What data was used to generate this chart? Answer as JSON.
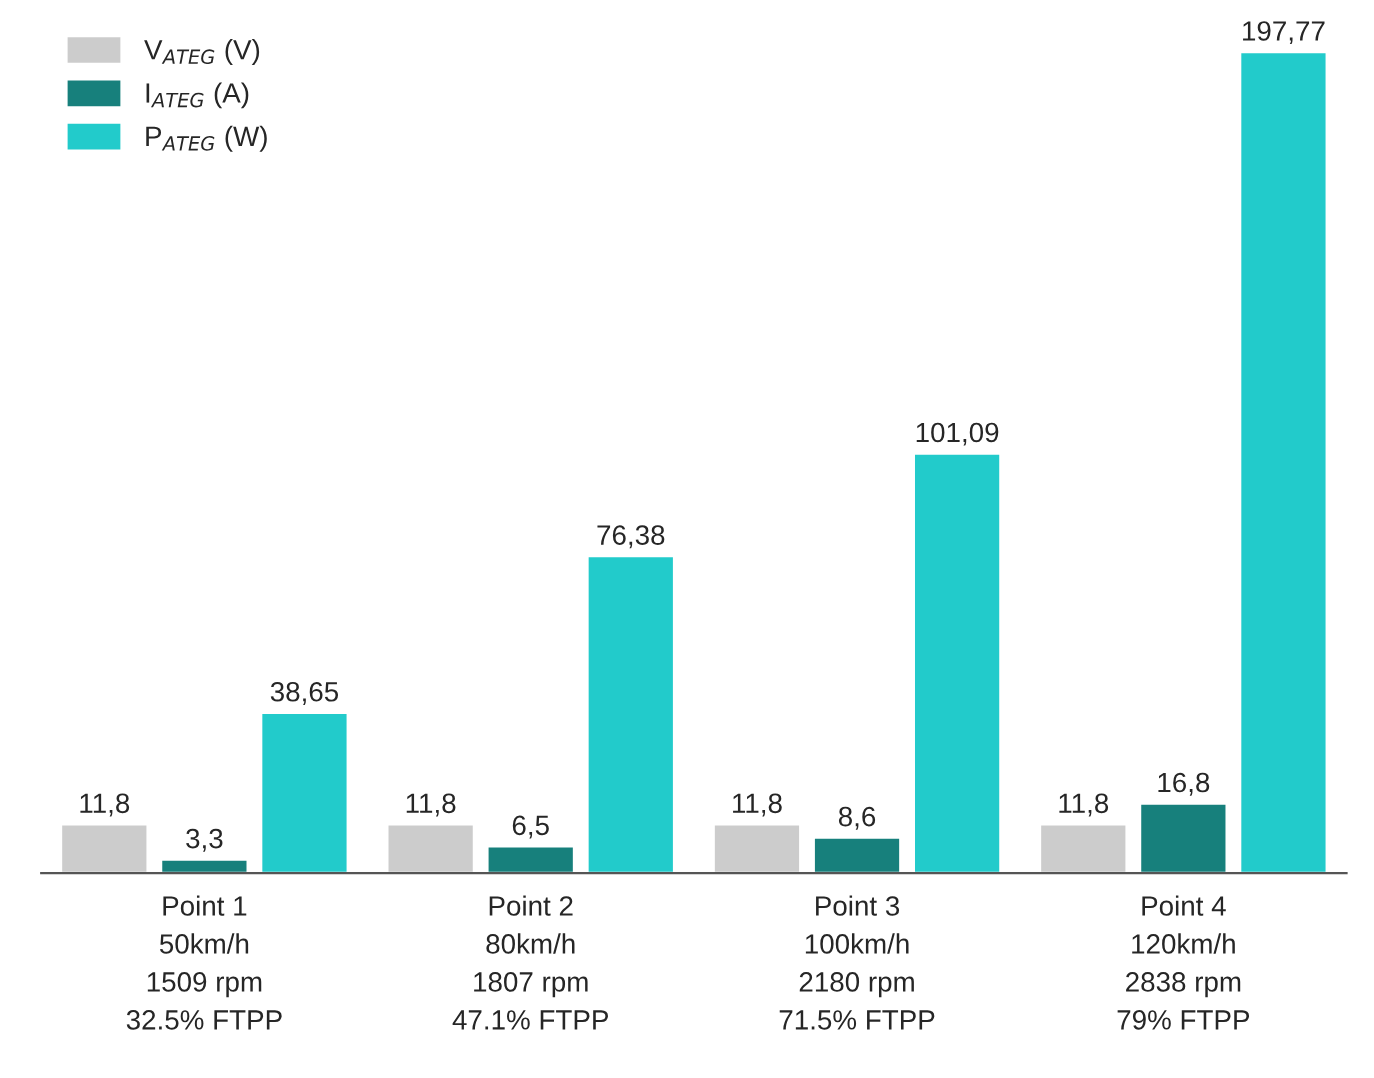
{
  "chart_data": {
    "type": "bar",
    "categories": [
      "Point 1\n50km/h\n1509 rpm\n32.5% FTPP",
      "Point 2\n80km/h\n1807 rpm\n47.1% FTPP",
      "Point 3\n100km/h\n2180 rpm\n71.5% FTPP",
      "Point 4\n120km/h\n2838 rpm\n79% FTPP"
    ],
    "series": [
      {
        "name": "V$_{ATEG}$ (V)",
        "color": "#cccccc",
        "values": [
          11.8,
          11.8,
          11.8,
          11.8
        ],
        "value_labels": [
          "11,8",
          "11,8",
          "11,8",
          "11,8"
        ]
      },
      {
        "name": "I$_{ATEG}$ (A)",
        "color": "#17807c",
        "values": [
          3.3,
          6.5,
          8.6,
          16.8
        ],
        "value_labels": [
          "3,3",
          "6,5",
          "8,6",
          "16,8"
        ]
      },
      {
        "name": "P$_{ATEG}$ (W)",
        "color": "#22cbcb",
        "values": [
          38.65,
          76.38,
          101.09,
          197.77
        ],
        "value_labels": [
          "38,65",
          "76,38",
          "101,09",
          "197,77"
        ]
      }
    ],
    "legend": "top left",
    "grid": false
  }
}
